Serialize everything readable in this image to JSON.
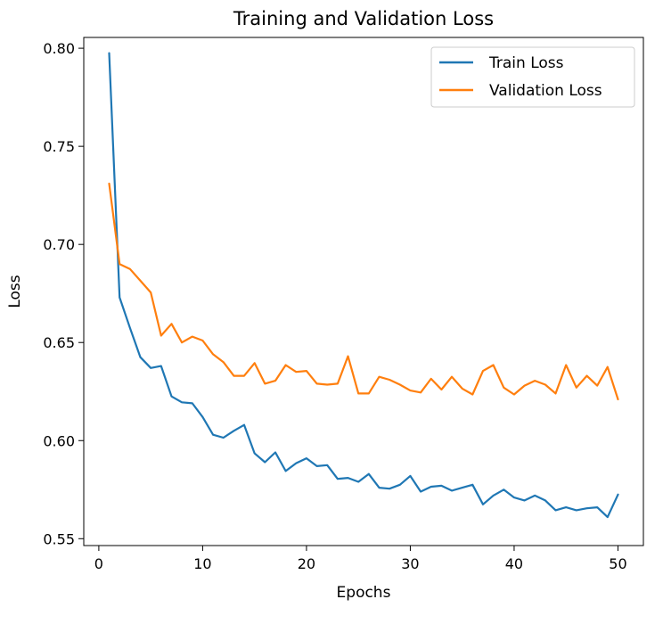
{
  "chart_data": {
    "type": "line",
    "title": "Training and Validation Loss",
    "xlabel": "Epochs",
    "ylabel": "Loss",
    "xlim": [
      -1.45,
      52.45
    ],
    "ylim": [
      0.5465,
      0.8055
    ],
    "xticks": [
      0,
      10,
      20,
      30,
      40,
      50
    ],
    "yticks": [
      0.55,
      0.6,
      0.65,
      0.7,
      0.75,
      0.8
    ],
    "xtick_labels": [
      "0",
      "10",
      "20",
      "30",
      "40",
      "50"
    ],
    "ytick_labels": [
      "0.55",
      "0.60",
      "0.65",
      "0.70",
      "0.75",
      "0.80"
    ],
    "grid": false,
    "legend_position": "top-right",
    "x": [
      1,
      2,
      3,
      4,
      5,
      6,
      7,
      8,
      9,
      10,
      11,
      12,
      13,
      14,
      15,
      16,
      17,
      18,
      19,
      20,
      21,
      22,
      23,
      24,
      25,
      26,
      27,
      28,
      29,
      30,
      31,
      32,
      33,
      34,
      35,
      36,
      37,
      38,
      39,
      40,
      41,
      42,
      43,
      44,
      45,
      46,
      47,
      48,
      49,
      50
    ],
    "series": [
      {
        "name": "Train Loss",
        "color": "#1f77b4",
        "values": [
          0.7975,
          0.673,
          0.6575,
          0.6425,
          0.637,
          0.638,
          0.6225,
          0.6195,
          0.619,
          0.612,
          0.603,
          0.6015,
          0.605,
          0.608,
          0.5935,
          0.589,
          0.594,
          0.5845,
          0.5885,
          0.591,
          0.587,
          0.5875,
          0.5805,
          0.581,
          0.579,
          0.583,
          0.576,
          0.5755,
          0.5775,
          0.582,
          0.574,
          0.5765,
          0.577,
          0.5745,
          0.576,
          0.5775,
          0.5675,
          0.572,
          0.575,
          0.571,
          0.5695,
          0.572,
          0.5695,
          0.5645,
          0.566,
          0.5645,
          0.5655,
          0.566,
          0.561,
          0.5725
        ]
      },
      {
        "name": "Validation Loss",
        "color": "#ff7f0e",
        "values": [
          0.731,
          0.69,
          0.6875,
          0.6815,
          0.6755,
          0.6535,
          0.6595,
          0.65,
          0.653,
          0.651,
          0.644,
          0.64,
          0.633,
          0.633,
          0.6395,
          0.629,
          0.6305,
          0.6385,
          0.635,
          0.6355,
          0.629,
          0.6285,
          0.629,
          0.643,
          0.624,
          0.624,
          0.6325,
          0.631,
          0.6285,
          0.6255,
          0.6245,
          0.6315,
          0.626,
          0.6325,
          0.6265,
          0.6235,
          0.6355,
          0.6385,
          0.627,
          0.6235,
          0.628,
          0.6305,
          0.6285,
          0.624,
          0.6385,
          0.627,
          0.633,
          0.628,
          0.6375,
          0.621
        ]
      }
    ]
  }
}
